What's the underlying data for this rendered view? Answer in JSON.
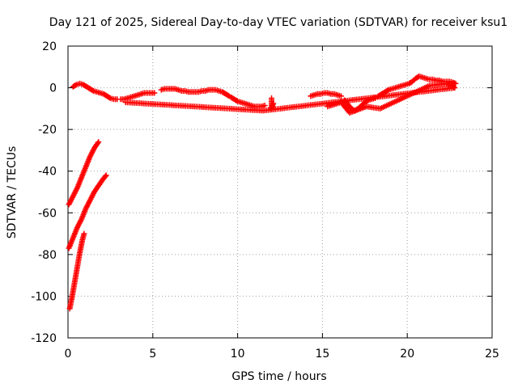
{
  "chart_data": {
    "type": "scatter",
    "title": "Day 121 of 2025, Sidereal Day-to-day VTEC variation (SDTVAR) for receiver ksu1",
    "xlabel": "GPS time / hours",
    "ylabel": "SDTVAR / TECUs",
    "xlim": [
      0,
      25
    ],
    "ylim": [
      -120,
      20
    ],
    "xticks": [
      0,
      5,
      10,
      15,
      20,
      25
    ],
    "yticks": [
      -120,
      -100,
      -80,
      -60,
      -40,
      -20,
      0,
      20
    ],
    "xtick_labels": [
      "0",
      "5",
      "10",
      "15",
      "20",
      "25"
    ],
    "ytick_labels": [
      "-120",
      "-100",
      "-80",
      "-60",
      "-40",
      "-20",
      "0",
      "20"
    ],
    "grid": true,
    "marker": "+",
    "series": [
      {
        "name": "SDTVAR",
        "color": "#ff0000",
        "segments": [
          {
            "points": [
              [
                0.3,
                0.5
              ],
              [
                0.5,
                1.5
              ],
              [
                0.7,
                2
              ],
              [
                0.9,
                1.5
              ],
              [
                1.1,
                0.5
              ],
              [
                1.3,
                -0.5
              ],
              [
                1.5,
                -1.5
              ],
              [
                1.7,
                -2
              ],
              [
                1.9,
                -2.5
              ],
              [
                2.1,
                -3
              ],
              [
                2.3,
                -4
              ],
              [
                2.5,
                -5
              ],
              [
                2.7,
                -5.5
              ],
              [
                2.9,
                -5.5
              ]
            ]
          },
          {
            "points": [
              [
                3.1,
                -5.5
              ],
              [
                3.3,
                -5.5
              ],
              [
                3.5,
                -5
              ],
              [
                3.7,
                -4.5
              ],
              [
                3.9,
                -4
              ],
              [
                4.1,
                -3.5
              ],
              [
                4.3,
                -3
              ],
              [
                4.5,
                -2.5
              ],
              [
                4.7,
                -2.5
              ],
              [
                4.9,
                -2.5
              ],
              [
                5.1,
                -2.5
              ]
            ]
          },
          {
            "points": [
              [
                5.5,
                -1
              ],
              [
                5.7,
                -0.5
              ],
              [
                5.9,
                -0.5
              ],
              [
                6.1,
                -0.5
              ],
              [
                6.3,
                -0.5
              ],
              [
                6.5,
                -1
              ],
              [
                6.7,
                -1.5
              ],
              [
                6.9,
                -1.5
              ],
              [
                7.1,
                -2
              ],
              [
                7.3,
                -2
              ],
              [
                7.5,
                -2
              ],
              [
                7.7,
                -2
              ],
              [
                7.9,
                -1.5
              ],
              [
                8.1,
                -1.5
              ],
              [
                8.3,
                -1
              ],
              [
                8.5,
                -1
              ],
              [
                8.7,
                -1
              ],
              [
                8.9,
                -1.5
              ],
              [
                9.1,
                -2
              ],
              [
                9.3,
                -3
              ],
              [
                9.5,
                -4
              ]
            ]
          },
          {
            "points": [
              [
                9.6,
                -4.5
              ],
              [
                9.8,
                -5.5
              ],
              [
                10.0,
                -6.5
              ],
              [
                10.2,
                -7
              ],
              [
                10.4,
                -7.5
              ],
              [
                10.6,
                -8
              ],
              [
                10.8,
                -8.5
              ],
              [
                11.0,
                -9
              ],
              [
                11.2,
                -9
              ],
              [
                11.4,
                -9
              ],
              [
                11.6,
                -8.5
              ]
            ]
          },
          {
            "points": [
              [
                12.0,
                -5
              ],
              [
                12.0,
                -10
              ],
              [
                12.1,
                -7.5
              ]
            ]
          },
          {
            "points": [
              [
                14.3,
                -4
              ],
              [
                14.5,
                -3.5
              ],
              [
                14.7,
                -3
              ],
              [
                14.9,
                -3
              ],
              [
                15.1,
                -2.5
              ],
              [
                15.3,
                -2.5
              ],
              [
                15.5,
                -3
              ],
              [
                15.7,
                -3
              ],
              [
                15.9,
                -3.5
              ],
              [
                16.1,
                -4
              ]
            ]
          },
          {
            "points": [
              [
                16.3,
                -6
              ],
              [
                16.5,
                -8
              ],
              [
                16.7,
                -10
              ],
              [
                16.9,
                -11
              ],
              [
                17.1,
                -10
              ],
              [
                17.3,
                -8.5
              ],
              [
                17.5,
                -7
              ],
              [
                17.7,
                -6
              ],
              [
                17.9,
                -5.5
              ],
              [
                18.1,
                -5
              ]
            ]
          },
          {
            "points": [
              [
                18.3,
                -4
              ],
              [
                18.5,
                -3
              ],
              [
                18.7,
                -2
              ],
              [
                18.9,
                -1
              ],
              [
                19.1,
                -0.5
              ],
              [
                19.3,
                0
              ],
              [
                19.5,
                0.5
              ],
              [
                19.7,
                1
              ],
              [
                19.9,
                1.5
              ],
              [
                20.1,
                2
              ],
              [
                20.3,
                3
              ],
              [
                20.5,
                4.5
              ],
              [
                20.7,
                5.5
              ],
              [
                20.9,
                5
              ],
              [
                21.1,
                4.5
              ],
              [
                21.3,
                4
              ],
              [
                21.5,
                4
              ],
              [
                21.7,
                3.5
              ],
              [
                21.9,
                3.5
              ],
              [
                22.1,
                3
              ],
              [
                22.3,
                3
              ],
              [
                22.5,
                3
              ],
              [
                22.7,
                2.5
              ],
              [
                22.85,
                2
              ]
            ]
          },
          {
            "points": [
              [
                15.3,
                -9
              ],
              [
                16.1,
                -7
              ],
              [
                16.6,
                -12
              ],
              [
                17.6,
                -9
              ],
              [
                18.4,
                -10
              ],
              [
                21.3,
                1
              ],
              [
                22.3,
                2
              ],
              [
                22.6,
                1
              ],
              [
                22.8,
                0
              ],
              [
                11.5,
                -11
              ],
              [
                3.4,
                -7
              ]
            ]
          },
          {
            "points": [
              [
                0.05,
                -56
              ],
              [
                0.3,
                -52
              ],
              [
                0.55,
                -48
              ],
              [
                0.8,
                -43
              ],
              [
                1.05,
                -38
              ],
              [
                1.3,
                -33
              ],
              [
                1.55,
                -29
              ],
              [
                1.8,
                -26
              ]
            ]
          },
          {
            "points": [
              [
                0.05,
                -77
              ],
              [
                0.3,
                -72
              ],
              [
                0.55,
                -67
              ],
              [
                0.8,
                -63
              ],
              [
                1.05,
                -58
              ],
              [
                1.3,
                -54
              ],
              [
                1.55,
                -50
              ],
              [
                1.8,
                -47
              ],
              [
                2.05,
                -44
              ],
              [
                2.25,
                -42
              ]
            ]
          },
          {
            "points": [
              [
                0.1,
                -106
              ],
              [
                0.25,
                -100
              ],
              [
                0.4,
                -93
              ],
              [
                0.55,
                -86
              ],
              [
                0.7,
                -79
              ],
              [
                0.85,
                -73
              ],
              [
                0.95,
                -70
              ]
            ]
          }
        ]
      }
    ]
  }
}
